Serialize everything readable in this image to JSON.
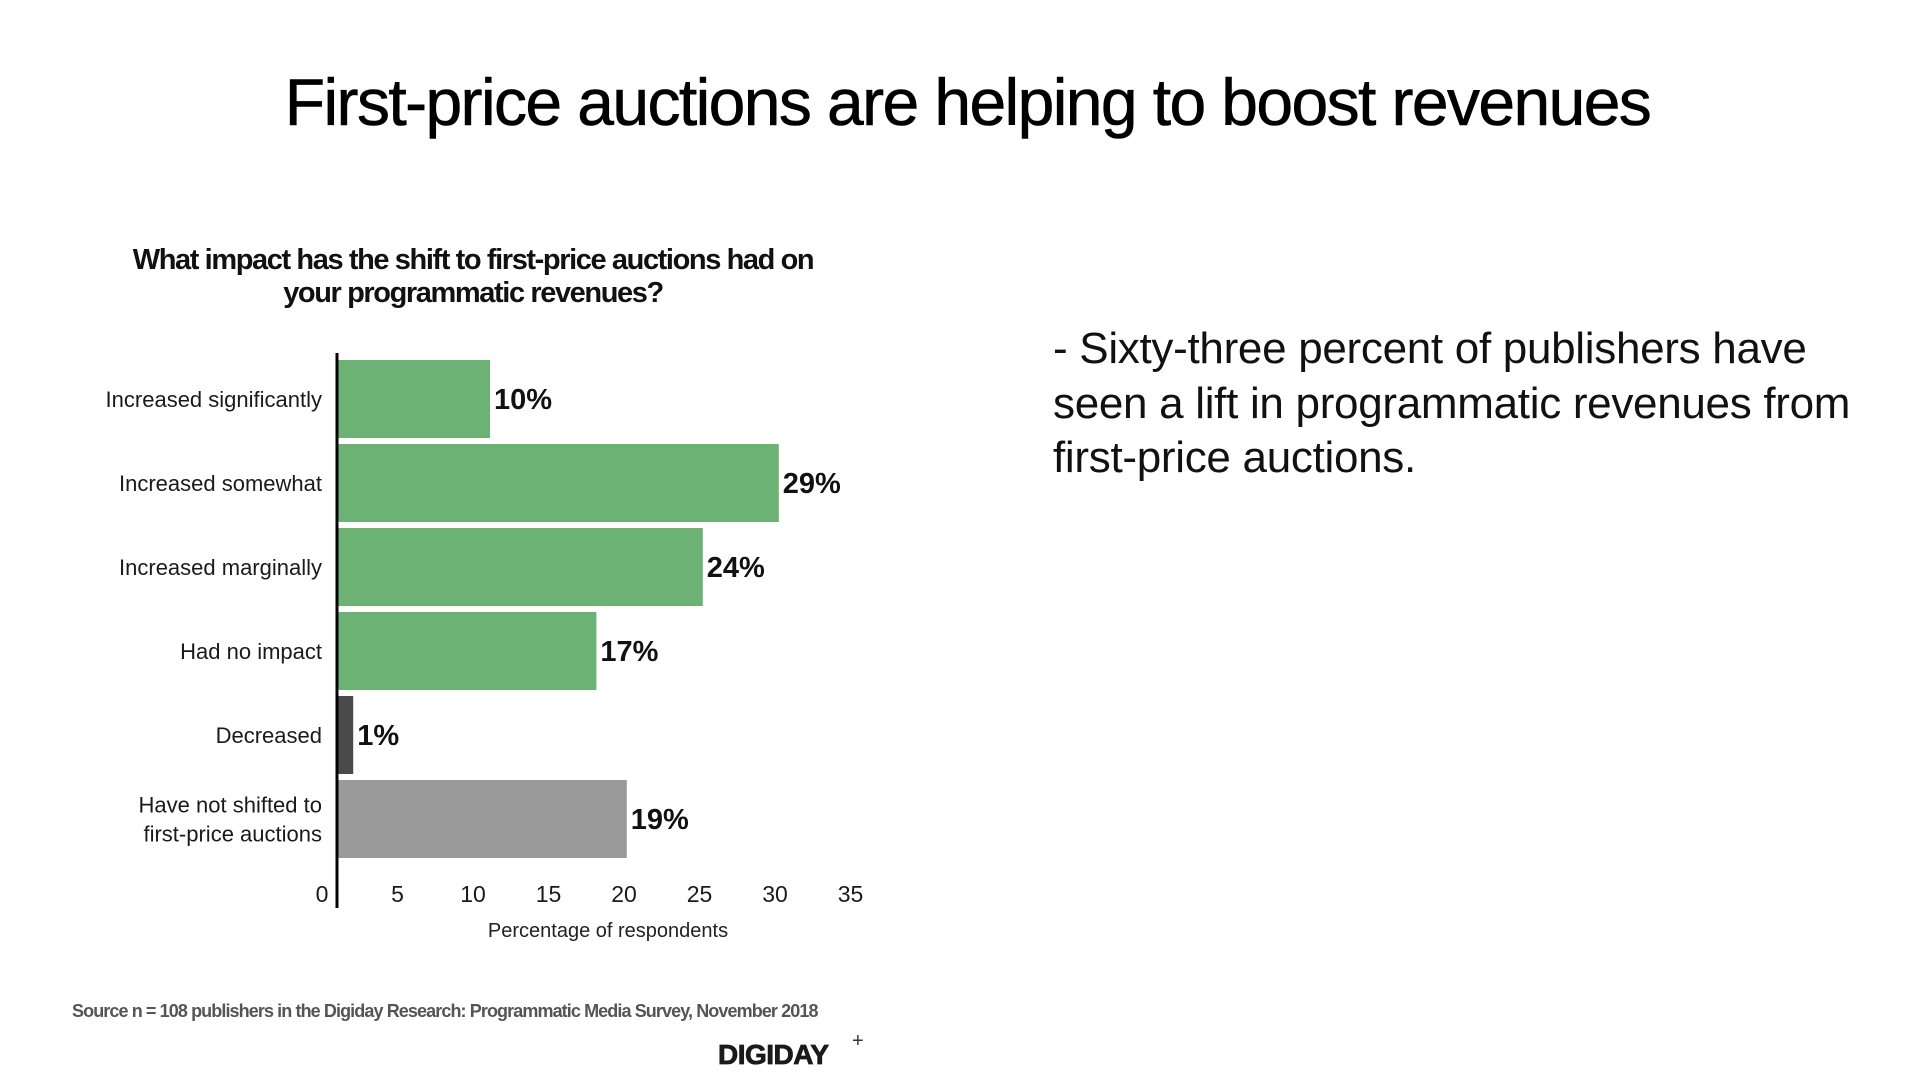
{
  "slide": {
    "title": "First-price auctions are helping to boost revenues",
    "bullet_text": "- Sixty-three percent of publishers have seen a lift in programmatic revenues from first-price auctions.",
    "source": "Source n = 108 publishers in the Digiday Research: Programmatic Media Survey, November 2018",
    "logo_text": "DIGIDAY",
    "logo_plus": "+"
  },
  "chart_data": {
    "type": "bar",
    "orientation": "horizontal",
    "title": "What impact has the shift to first-price auctions had on your programmatic revenues?",
    "title_lines": [
      "What impact has the shift to first-price auctions had on",
      "your programmatic revenues?"
    ],
    "xlabel": "Percentage of respondents",
    "ylabel": "",
    "categories": [
      [
        "Increased significantly"
      ],
      [
        "Increased somewhat"
      ],
      [
        "Increased marginally"
      ],
      [
        "Had no impact"
      ],
      [
        "Decreased"
      ],
      [
        "Have not shifted to",
        "first-price auctions"
      ]
    ],
    "values": [
      10,
      29,
      24,
      17,
      1,
      19
    ],
    "value_labels": [
      "10%",
      "29%",
      "24%",
      "17%",
      "1%",
      "19%"
    ],
    "colors": [
      "#6cb274",
      "#6cb274",
      "#6cb274",
      "#6cb274",
      "#4a4a4a",
      "#9a9a9a"
    ],
    "xlim": [
      0,
      35
    ],
    "xticks": [
      0,
      5,
      10,
      15,
      20,
      25,
      30,
      35
    ],
    "grid": false,
    "legend": "none"
  }
}
